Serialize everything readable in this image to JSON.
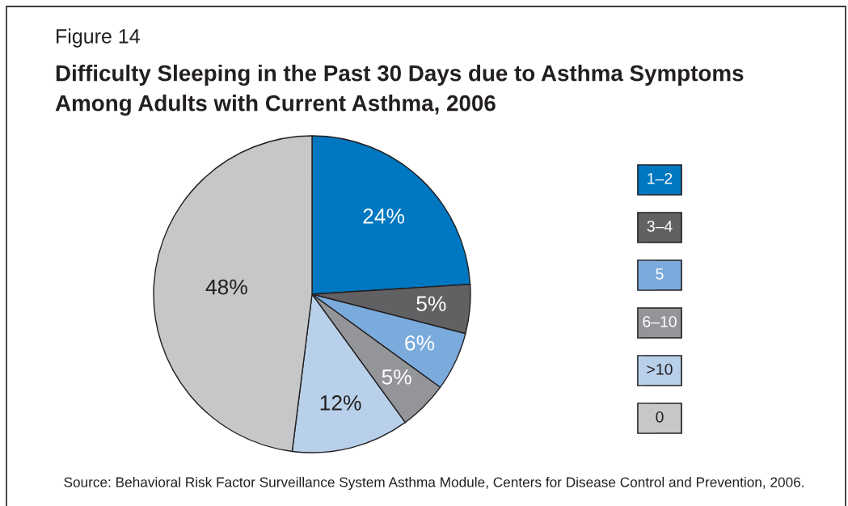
{
  "chart_data": {
    "type": "pie",
    "title": "Difficulty Sleeping in the Past 30 Days due to Asthma Symptoms\nAmong Adults with Current Asthma, 2006",
    "categories": [
      "1–2",
      "3–4",
      "5",
      "6–10",
      ">10",
      "0"
    ],
    "values": [
      24,
      5,
      6,
      5,
      12,
      48
    ],
    "colors": [
      "#0077c1",
      "#616163",
      "#7aabdc",
      "#939598",
      "#b8d0ea",
      "#c6c7c8"
    ],
    "value_labels": [
      "24%",
      "5%",
      "6%",
      "5%",
      "12%",
      "48%"
    ],
    "legend": "right",
    "annotations": [
      "Figure 14",
      "Source: Behavioral Risk Factor Surveillance System Asthma Module, Centers for Disease Control and Prevention, 2006."
    ]
  }
}
